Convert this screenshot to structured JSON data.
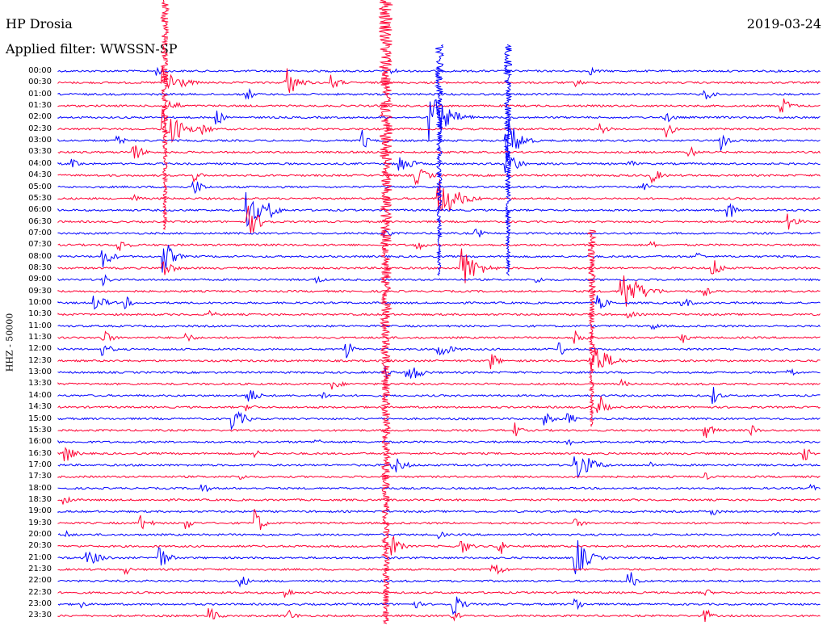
{
  "header": {
    "station": "HP Drosia",
    "date": "2019-03-24",
    "filter": "Applied filter: WWSSN-SP"
  },
  "colors": {
    "blue": "#0000ff",
    "red": "#ff0033"
  },
  "chart_data": {
    "type": "line",
    "title": "HP Drosia",
    "ylabel": "HHZ - 50000",
    "row_interval_minutes": 30,
    "row_labels": [
      "00:00",
      "00:30",
      "01:00",
      "01:30",
      "02:00",
      "02:30",
      "03:00",
      "03:30",
      "04:00",
      "04:30",
      "05:00",
      "05:30",
      "06:00",
      "06:30",
      "07:00",
      "07:30",
      "08:00",
      "08:30",
      "09:00",
      "09:30",
      "10:00",
      "10:30",
      "11:00",
      "11:30",
      "12:00",
      "12:30",
      "13:00",
      "13:30",
      "14:00",
      "14:30",
      "15:00",
      "15:30",
      "16:00",
      "16:30",
      "17:00",
      "17:30",
      "18:00",
      "18:30",
      "19:00",
      "19:30",
      "20:00",
      "20:30",
      "21:00",
      "21:30",
      "22:00",
      "22:30",
      "23:00",
      "23:30"
    ],
    "color_cycle": [
      "blue",
      "red"
    ],
    "bursts": [
      {
        "row": 0,
        "x": 0.13,
        "amp": 6,
        "w": 0.03
      },
      {
        "row": 0,
        "x": 0.44,
        "amp": 5,
        "w": 0.02
      },
      {
        "row": 0,
        "x": 0.7,
        "amp": 5,
        "w": 0.03
      },
      {
        "row": 1,
        "x": 0.14,
        "amp": 22,
        "w": 0.05
      },
      {
        "row": 1,
        "x": 0.3,
        "amp": 20,
        "w": 0.04
      },
      {
        "row": 1,
        "x": 0.36,
        "amp": 10,
        "w": 0.03
      },
      {
        "row": 1,
        "x": 0.68,
        "amp": 5,
        "w": 0.03
      },
      {
        "row": 2,
        "x": 0.25,
        "amp": 8,
        "w": 0.02
      },
      {
        "row": 2,
        "x": 0.85,
        "amp": 7,
        "w": 0.03
      },
      {
        "row": 3,
        "x": 0.15,
        "amp": 8,
        "w": 0.03
      },
      {
        "row": 3,
        "x": 0.95,
        "amp": 12,
        "w": 0.03
      },
      {
        "row": 4,
        "x": 0.49,
        "amp": 30,
        "w": 0.06
      },
      {
        "row": 4,
        "x": 0.21,
        "amp": 10,
        "w": 0.02
      },
      {
        "row": 4,
        "x": 0.8,
        "amp": 6,
        "w": 0.03
      },
      {
        "row": 5,
        "x": 0.14,
        "amp": 30,
        "w": 0.05
      },
      {
        "row": 5,
        "x": 0.19,
        "amp": 8,
        "w": 0.03
      },
      {
        "row": 5,
        "x": 0.71,
        "amp": 8,
        "w": 0.03
      },
      {
        "row": 5,
        "x": 0.8,
        "amp": 12,
        "w": 0.02
      },
      {
        "row": 6,
        "x": 0.08,
        "amp": 6,
        "w": 0.03
      },
      {
        "row": 6,
        "x": 0.4,
        "amp": 14,
        "w": 0.02
      },
      {
        "row": 6,
        "x": 0.59,
        "amp": 30,
        "w": 0.04
      },
      {
        "row": 6,
        "x": 0.87,
        "amp": 14,
        "w": 0.03
      },
      {
        "row": 7,
        "x": 0.1,
        "amp": 12,
        "w": 0.03
      },
      {
        "row": 7,
        "x": 0.83,
        "amp": 8,
        "w": 0.02
      },
      {
        "row": 8,
        "x": 0.02,
        "amp": 6,
        "w": 0.03
      },
      {
        "row": 8,
        "x": 0.45,
        "amp": 12,
        "w": 0.04
      },
      {
        "row": 8,
        "x": 0.59,
        "amp": 22,
        "w": 0.03
      },
      {
        "row": 8,
        "x": 0.75,
        "amp": 6,
        "w": 0.02
      },
      {
        "row": 9,
        "x": 0.18,
        "amp": 8,
        "w": 0.02
      },
      {
        "row": 9,
        "x": 0.47,
        "amp": 12,
        "w": 0.04
      },
      {
        "row": 9,
        "x": 0.78,
        "amp": 10,
        "w": 0.03
      },
      {
        "row": 10,
        "x": 0.18,
        "amp": 10,
        "w": 0.03
      },
      {
        "row": 10,
        "x": 0.77,
        "amp": 8,
        "w": 0.02
      },
      {
        "row": 11,
        "x": 0.5,
        "amp": 28,
        "w": 0.06
      },
      {
        "row": 11,
        "x": 0.1,
        "amp": 5,
        "w": 0.03
      },
      {
        "row": 12,
        "x": 0.25,
        "amp": 25,
        "w": 0.04
      },
      {
        "row": 12,
        "x": 0.28,
        "amp": 10,
        "w": 0.03
      },
      {
        "row": 12,
        "x": 0.88,
        "amp": 14,
        "w": 0.02
      },
      {
        "row": 13,
        "x": 0.25,
        "amp": 20,
        "w": 0.04
      },
      {
        "row": 13,
        "x": 0.96,
        "amp": 10,
        "w": 0.03
      },
      {
        "row": 14,
        "x": 0.55,
        "amp": 8,
        "w": 0.02
      },
      {
        "row": 14,
        "x": 0.43,
        "amp": 6,
        "w": 0.02
      },
      {
        "row": 15,
        "x": 0.08,
        "amp": 10,
        "w": 0.03
      },
      {
        "row": 15,
        "x": 0.47,
        "amp": 8,
        "w": 0.03
      },
      {
        "row": 15,
        "x": 0.78,
        "amp": 5,
        "w": 0.02
      },
      {
        "row": 16,
        "x": 0.06,
        "amp": 14,
        "w": 0.03
      },
      {
        "row": 16,
        "x": 0.14,
        "amp": 22,
        "w": 0.03
      },
      {
        "row": 16,
        "x": 0.84,
        "amp": 6,
        "w": 0.02
      },
      {
        "row": 17,
        "x": 0.14,
        "amp": 12,
        "w": 0.03
      },
      {
        "row": 17,
        "x": 0.53,
        "amp": 28,
        "w": 0.05
      },
      {
        "row": 17,
        "x": 0.86,
        "amp": 12,
        "w": 0.03
      },
      {
        "row": 18,
        "x": 0.06,
        "amp": 8,
        "w": 0.02
      },
      {
        "row": 18,
        "x": 0.34,
        "amp": 6,
        "w": 0.02
      },
      {
        "row": 18,
        "x": 0.63,
        "amp": 5,
        "w": 0.02
      },
      {
        "row": 19,
        "x": 0.74,
        "amp": 30,
        "w": 0.06
      },
      {
        "row": 19,
        "x": 0.85,
        "amp": 6,
        "w": 0.02
      },
      {
        "row": 20,
        "x": 0.05,
        "amp": 10,
        "w": 0.04
      },
      {
        "row": 20,
        "x": 0.09,
        "amp": 8,
        "w": 0.02
      },
      {
        "row": 20,
        "x": 0.71,
        "amp": 10,
        "w": 0.03
      },
      {
        "row": 20,
        "x": 0.82,
        "amp": 8,
        "w": 0.03
      },
      {
        "row": 21,
        "x": 0.2,
        "amp": 5,
        "w": 0.03
      },
      {
        "row": 21,
        "x": 0.75,
        "amp": 5,
        "w": 0.03
      },
      {
        "row": 22,
        "x": 0.78,
        "amp": 5,
        "w": 0.03
      },
      {
        "row": 23,
        "x": 0.06,
        "amp": 10,
        "w": 0.03
      },
      {
        "row": 23,
        "x": 0.17,
        "amp": 6,
        "w": 0.03
      },
      {
        "row": 23,
        "x": 0.68,
        "amp": 10,
        "w": 0.03
      },
      {
        "row": 23,
        "x": 0.82,
        "amp": 8,
        "w": 0.02
      },
      {
        "row": 24,
        "x": 0.06,
        "amp": 8,
        "w": 0.03
      },
      {
        "row": 24,
        "x": 0.38,
        "amp": 12,
        "w": 0.02
      },
      {
        "row": 24,
        "x": 0.5,
        "amp": 12,
        "w": 0.04
      },
      {
        "row": 24,
        "x": 0.66,
        "amp": 8,
        "w": 0.02
      },
      {
        "row": 25,
        "x": 0.57,
        "amp": 12,
        "w": 0.02
      },
      {
        "row": 25,
        "x": 0.7,
        "amp": 28,
        "w": 0.05
      },
      {
        "row": 26,
        "x": 0.43,
        "amp": 8,
        "w": 0.02
      },
      {
        "row": 26,
        "x": 0.46,
        "amp": 14,
        "w": 0.04
      },
      {
        "row": 26,
        "x": 0.96,
        "amp": 8,
        "w": 0.02
      },
      {
        "row": 27,
        "x": 0.36,
        "amp": 8,
        "w": 0.03
      },
      {
        "row": 27,
        "x": 0.74,
        "amp": 6,
        "w": 0.02
      },
      {
        "row": 28,
        "x": 0.25,
        "amp": 12,
        "w": 0.03
      },
      {
        "row": 28,
        "x": 0.35,
        "amp": 6,
        "w": 0.02
      },
      {
        "row": 28,
        "x": 0.86,
        "amp": 12,
        "w": 0.02
      },
      {
        "row": 29,
        "x": 0.25,
        "amp": 5,
        "w": 0.03
      },
      {
        "row": 29,
        "x": 0.71,
        "amp": 18,
        "w": 0.02
      },
      {
        "row": 30,
        "x": 0.23,
        "amp": 14,
        "w": 0.04
      },
      {
        "row": 30,
        "x": 0.64,
        "amp": 8,
        "w": 0.03
      },
      {
        "row": 30,
        "x": 0.67,
        "amp": 10,
        "w": 0.02
      },
      {
        "row": 31,
        "x": 0.6,
        "amp": 10,
        "w": 0.02
      },
      {
        "row": 31,
        "x": 0.85,
        "amp": 10,
        "w": 0.03
      },
      {
        "row": 31,
        "x": 0.91,
        "amp": 8,
        "w": 0.02
      },
      {
        "row": 32,
        "x": 0.34,
        "amp": 5,
        "w": 0.02
      },
      {
        "row": 32,
        "x": 0.67,
        "amp": 5,
        "w": 0.02
      },
      {
        "row": 33,
        "x": 0.01,
        "amp": 12,
        "w": 0.03
      },
      {
        "row": 33,
        "x": 0.26,
        "amp": 6,
        "w": 0.02
      },
      {
        "row": 33,
        "x": 0.98,
        "amp": 10,
        "w": 0.02
      },
      {
        "row": 34,
        "x": 0.44,
        "amp": 12,
        "w": 0.04
      },
      {
        "row": 34,
        "x": 0.68,
        "amp": 22,
        "w": 0.05
      },
      {
        "row": 34,
        "x": 0.78,
        "amp": 5,
        "w": 0.02
      },
      {
        "row": 35,
        "x": 0.24,
        "amp": 5,
        "w": 0.02
      },
      {
        "row": 35,
        "x": 0.85,
        "amp": 5,
        "w": 0.02
      },
      {
        "row": 36,
        "x": 0.19,
        "amp": 8,
        "w": 0.02
      },
      {
        "row": 36,
        "x": 0.99,
        "amp": 6,
        "w": 0.01
      },
      {
        "row": 37,
        "x": 0.01,
        "amp": 8,
        "w": 0.02
      },
      {
        "row": 38,
        "x": 0.86,
        "amp": 6,
        "w": 0.02
      },
      {
        "row": 39,
        "x": 0.11,
        "amp": 10,
        "w": 0.03
      },
      {
        "row": 39,
        "x": 0.17,
        "amp": 8,
        "w": 0.02
      },
      {
        "row": 39,
        "x": 0.26,
        "amp": 20,
        "w": 0.02
      },
      {
        "row": 39,
        "x": 0.68,
        "amp": 6,
        "w": 0.03
      },
      {
        "row": 40,
        "x": 0.01,
        "amp": 6,
        "w": 0.02
      },
      {
        "row": 40,
        "x": 0.5,
        "amp": 6,
        "w": 0.02
      },
      {
        "row": 40,
        "x": 0.94,
        "amp": 5,
        "w": 0.02
      },
      {
        "row": 41,
        "x": 0.44,
        "amp": 12,
        "w": 0.03
      },
      {
        "row": 41,
        "x": 0.53,
        "amp": 10,
        "w": 0.03
      },
      {
        "row": 41,
        "x": 0.58,
        "amp": 12,
        "w": 0.02
      },
      {
        "row": 42,
        "x": 0.04,
        "amp": 10,
        "w": 0.05
      },
      {
        "row": 42,
        "x": 0.13,
        "amp": 22,
        "w": 0.03
      },
      {
        "row": 42,
        "x": 0.68,
        "amp": 25,
        "w": 0.04
      },
      {
        "row": 43,
        "x": 0.09,
        "amp": 6,
        "w": 0.02
      },
      {
        "row": 43,
        "x": 0.57,
        "amp": 14,
        "w": 0.03
      },
      {
        "row": 44,
        "x": 0.24,
        "amp": 8,
        "w": 0.03
      },
      {
        "row": 44,
        "x": 0.75,
        "amp": 14,
        "w": 0.02
      },
      {
        "row": 45,
        "x": 0.3,
        "amp": 8,
        "w": 0.02
      },
      {
        "row": 45,
        "x": 0.85,
        "amp": 6,
        "w": 0.02
      },
      {
        "row": 46,
        "x": 0.03,
        "amp": 5,
        "w": 0.02
      },
      {
        "row": 46,
        "x": 0.47,
        "amp": 6,
        "w": 0.02
      },
      {
        "row": 46,
        "x": 0.52,
        "amp": 14,
        "w": 0.03
      },
      {
        "row": 46,
        "x": 0.68,
        "amp": 10,
        "w": 0.02
      },
      {
        "row": 47,
        "x": 0.2,
        "amp": 10,
        "w": 0.03
      },
      {
        "row": 47,
        "x": 0.3,
        "amp": 10,
        "w": 0.03
      },
      {
        "row": 47,
        "x": 0.52,
        "amp": 8,
        "w": 0.02
      },
      {
        "row": 47,
        "x": 0.85,
        "amp": 10,
        "w": 0.02
      }
    ],
    "large_events": [
      {
        "x": 0.14,
        "rows": [
          0,
          13
        ],
        "color": "red"
      },
      {
        "x": 0.43,
        "rows": [
          0,
          47
        ],
        "color": "red"
      },
      {
        "x": 0.5,
        "rows": [
          4,
          17
        ],
        "color": "blue"
      },
      {
        "x": 0.59,
        "rows": [
          4,
          17
        ],
        "color": "blue"
      },
      {
        "x": 0.7,
        "rows": [
          20,
          30
        ],
        "color": "red"
      }
    ]
  }
}
